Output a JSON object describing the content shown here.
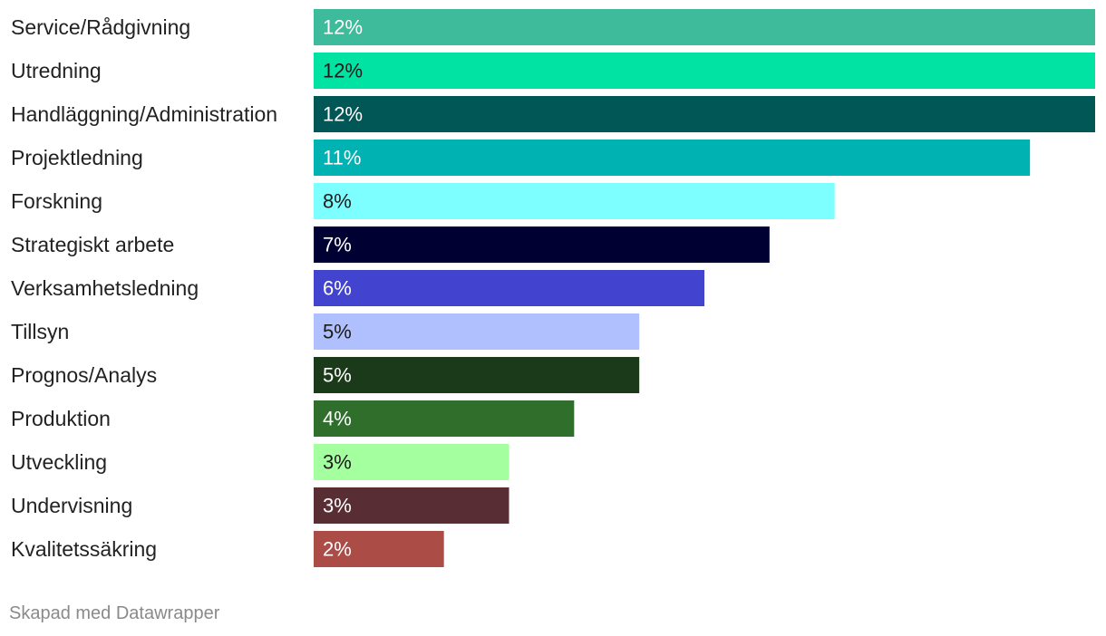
{
  "chart_data": {
    "type": "bar",
    "orientation": "horizontal",
    "categories": [
      "Service/Rådgivning",
      "Utredning",
      "Handläggning/Administration",
      "Projektledning",
      "Forskning",
      "Strategiskt arbete",
      "Verksamhetsledning",
      "Tillsyn",
      "Prognos/Analys",
      "Produktion",
      "Utveckling",
      "Undervisning",
      "Kvalitetssäkring"
    ],
    "values": [
      12,
      12,
      12,
      11,
      8,
      7,
      6,
      5,
      5,
      4,
      3,
      3,
      2
    ],
    "value_labels": [
      "12%",
      "12%",
      "12%",
      "11%",
      "8%",
      "7%",
      "6%",
      "5%",
      "5%",
      "4%",
      "3%",
      "3%",
      "2%"
    ],
    "value_unit": "%",
    "xlim": [
      0,
      12
    ],
    "colors": [
      "#3dbb9b",
      "#00e3a3",
      "#015656",
      "#00b2b2",
      "#7effff",
      "#000033",
      "#4244cf",
      "#b0c0ff",
      "#1a3a19",
      "#2f6f2b",
      "#a4ff9f",
      "#582d34",
      "#ab4c47"
    ],
    "label_colors": [
      "#ffffff",
      "#1a1a1a",
      "#ffffff",
      "#ffffff",
      "#1a1a1a",
      "#ffffff",
      "#ffffff",
      "#1a1a1a",
      "#ffffff",
      "#ffffff",
      "#1a1a1a",
      "#ffffff",
      "#ffffff"
    ],
    "grid": false,
    "legend": "none",
    "title": "",
    "xlabel": "",
    "ylabel": ""
  },
  "footer": {
    "credit": "Skapad med Datawrapper"
  }
}
